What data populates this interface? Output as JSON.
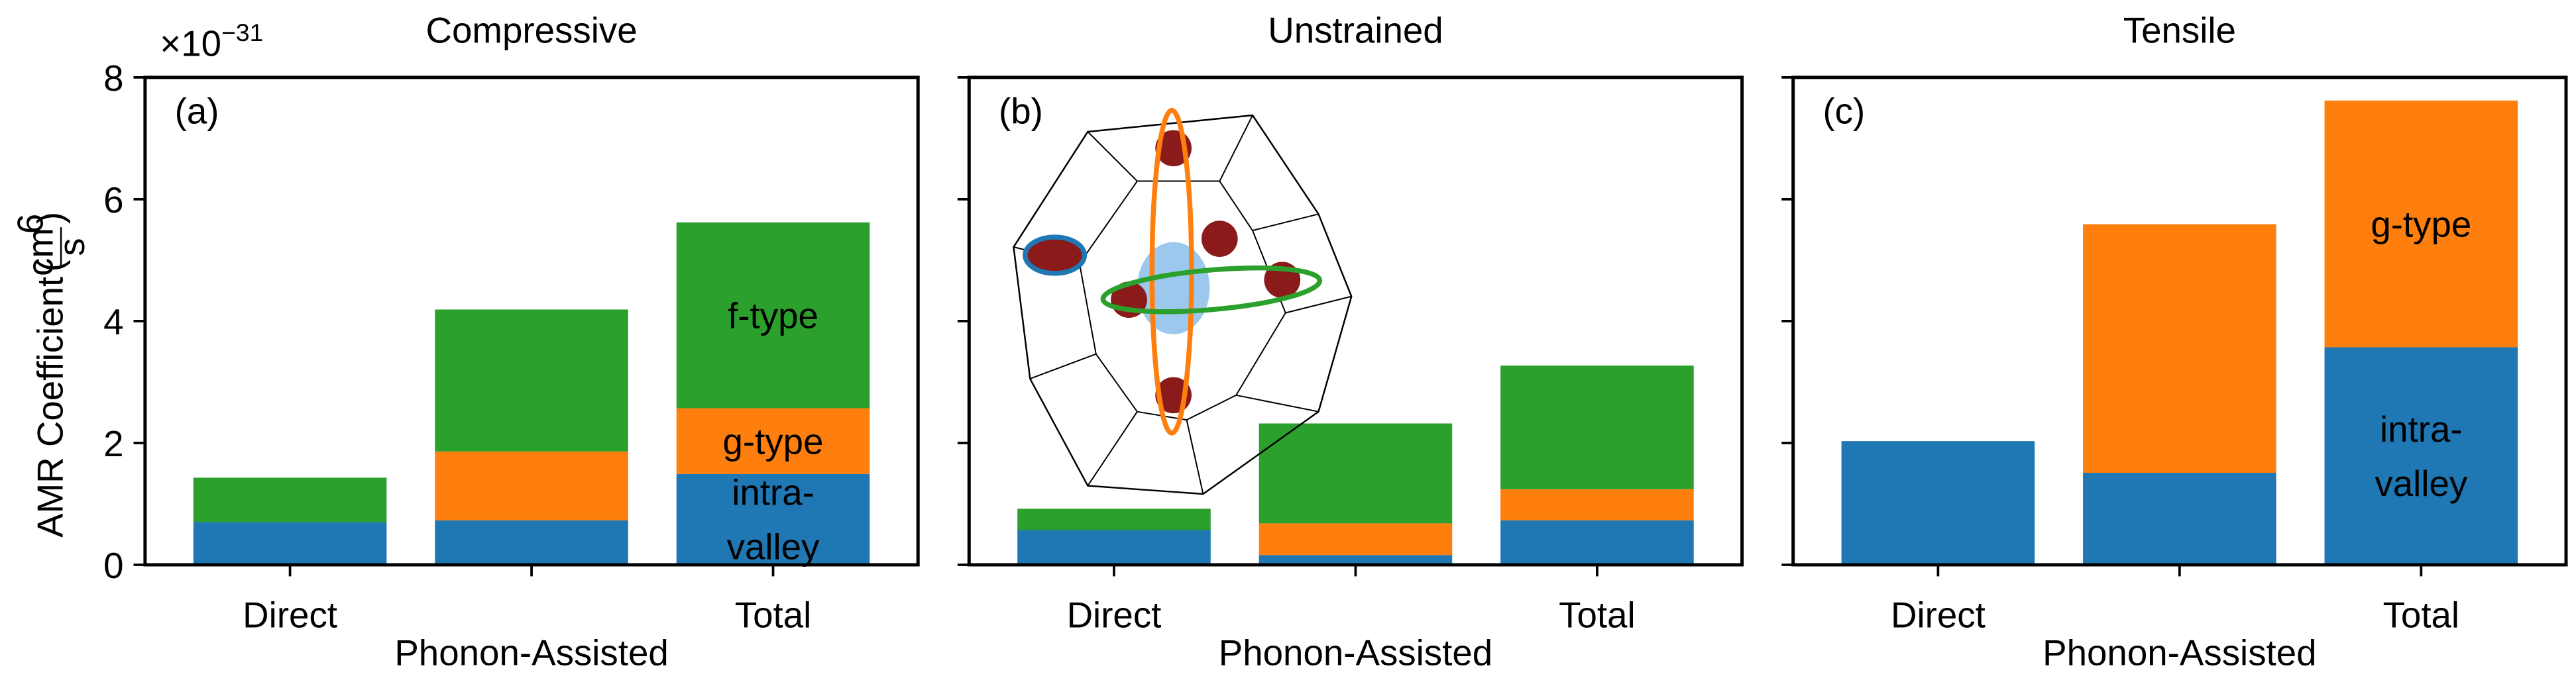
{
  "chart_data": [
    {
      "type": "bar",
      "stacked": true,
      "title": "Compressive",
      "panel_label": "(a)",
      "ylabel": "AMR Coefficient",
      "ylabel_unit": {
        "numerator": "cm",
        "numerator_exponent": "6",
        "denominator": "s"
      },
      "y_multiplier": "×10",
      "y_multiplier_exponent": "−31",
      "categories": [
        "Direct",
        "Phonon-Assisted",
        "Total"
      ],
      "series": [
        {
          "name": "intra-valley",
          "color": "#1f77b4",
          "values": [
            0.7,
            0.73,
            1.49
          ]
        },
        {
          "name": "g-type",
          "color": "#ff7f0e",
          "values": [
            0,
            1.13,
            1.08
          ]
        },
        {
          "name": "f-type",
          "color": "#2ca02c",
          "values": [
            0.73,
            2.33,
            3.05
          ]
        }
      ],
      "annotations": [
        {
          "text": "f-type",
          "series": 2,
          "text_color": "#000000"
        },
        {
          "text": "g-type",
          "series": 1,
          "text_color": "#000000"
        },
        {
          "text": "intra-\nvalley",
          "series": 0,
          "text_color": "#ffffff"
        }
      ],
      "ylim": [
        0,
        8
      ],
      "yticks": [
        0,
        2,
        4,
        6,
        8
      ],
      "show_ytick_labels": true
    },
    {
      "type": "bar",
      "stacked": true,
      "title": "Unstrained",
      "panel_label": "(b)",
      "categories": [
        "Direct",
        "Phonon-Assisted",
        "Total"
      ],
      "series": [
        {
          "name": "intra-valley",
          "color": "#1f77b4",
          "values": [
            0.57,
            0.16,
            0.73
          ]
        },
        {
          "name": "g-type",
          "color": "#ff7f0e",
          "values": [
            0,
            0.52,
            0.51
          ]
        },
        {
          "name": "f-type",
          "color": "#2ca02c",
          "values": [
            0.35,
            1.64,
            2.03
          ]
        }
      ],
      "annotations": [],
      "ylim": [
        0,
        8
      ],
      "yticks": [
        0,
        2,
        4,
        6,
        8
      ],
      "show_ytick_labels": false
    },
    {
      "type": "bar",
      "stacked": true,
      "title": "Tensile",
      "panel_label": "(c)",
      "categories": [
        "Direct",
        "Phonon-Assisted",
        "Total"
      ],
      "series": [
        {
          "name": "intra-valley",
          "color": "#1f77b4",
          "values": [
            2.03,
            1.51,
            3.57
          ]
        },
        {
          "name": "g-type",
          "color": "#ff7f0e",
          "values": [
            0,
            4.08,
            4.05
          ]
        },
        {
          "name": "f-type",
          "color": "#2ca02c",
          "values": [
            0,
            0,
            0
          ]
        }
      ],
      "annotations": [
        {
          "text": "g-type",
          "series": 1,
          "text_color": "#000000"
        },
        {
          "text": "intra-\nvalley",
          "series": 0,
          "text_color": "#ffffff"
        }
      ],
      "ylim": [
        0,
        8
      ],
      "yticks": [
        0,
        2,
        4,
        6,
        8
      ],
      "show_ytick_labels": false
    }
  ]
}
